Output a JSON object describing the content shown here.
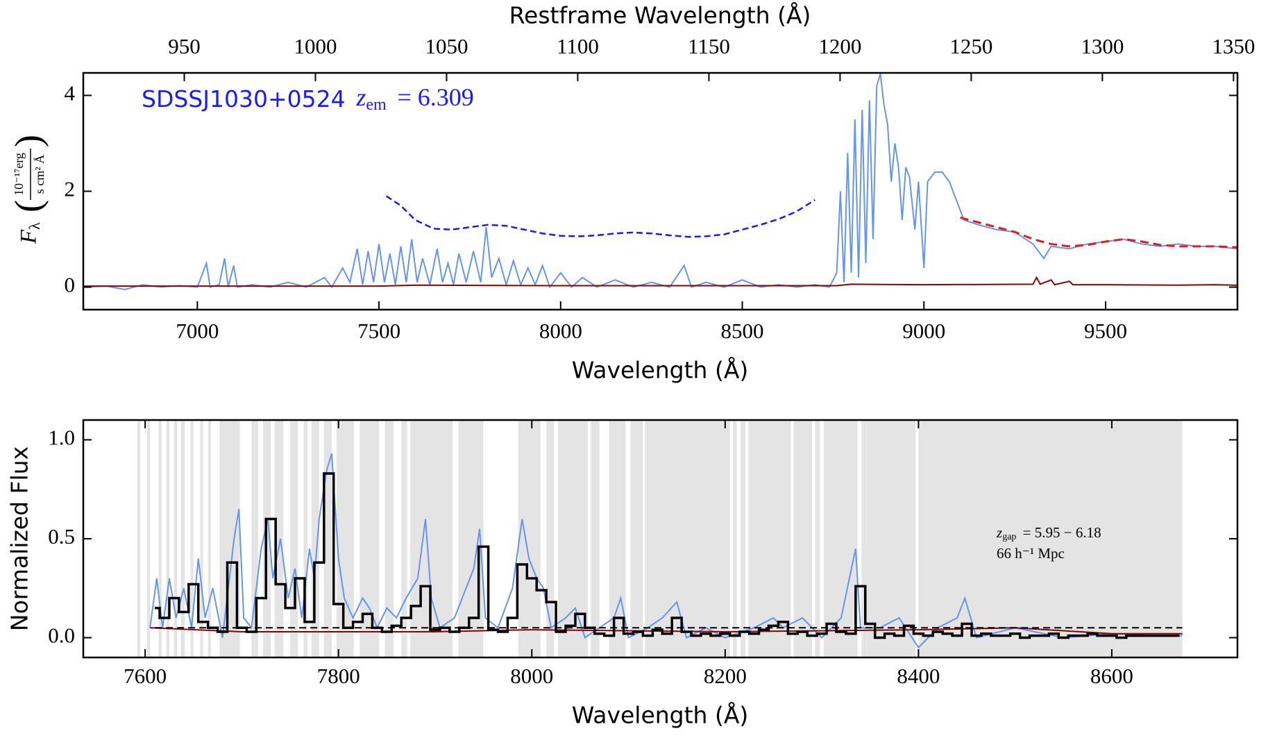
{
  "chart_data": [
    {
      "type": "line",
      "xlabel": "Wavelength (Å)",
      "x2label": "Restframe Wavelength (Å)",
      "ylabel_symbol": "F",
      "ylabel_sub": "λ",
      "ylabel_num": "10⁻¹⁷erg",
      "ylabel_den": "s cm² Å",
      "annotation_name": "SDSSJ1030+0524",
      "annotation_z": "z",
      "annotation_z_sub": "em",
      "annotation_z_value": "= 6.309",
      "annotation_color": "#1a1aff",
      "xlim": [
        6686,
        9863
      ],
      "xticks": [
        7000,
        7500,
        8000,
        8500,
        9000,
        9500
      ],
      "x2lim": [
        911.5,
        1351.5
      ],
      "x2ticks": [
        950,
        1000,
        1050,
        1100,
        1150,
        1200,
        1250,
        1300,
        1350
      ],
      "ylim": [
        -0.47,
        4.47
      ],
      "yticks": [
        0,
        2,
        4
      ],
      "series": [
        {
          "name": "flux",
          "color": "#6495ed",
          "dash": "none",
          "width": 2,
          "x": [
            6686,
            6750,
            6800,
            6850,
            6900,
            6950,
            7000,
            7025,
            7035,
            7060,
            7075,
            7085,
            7100,
            7110,
            7150,
            7200,
            7250,
            7300,
            7350,
            7370,
            7400,
            7420,
            7440,
            7455,
            7470,
            7485,
            7500,
            7515,
            7530,
            7545,
            7560,
            7575,
            7590,
            7605,
            7620,
            7640,
            7660,
            7675,
            7690,
            7705,
            7720,
            7740,
            7760,
            7780,
            7795,
            7810,
            7830,
            7850,
            7870,
            7890,
            7910,
            7930,
            7950,
            7970,
            8000,
            8030,
            8060,
            8100,
            8150,
            8200,
            8250,
            8300,
            8340,
            8360,
            8400,
            8450,
            8500,
            8550,
            8600,
            8650,
            8700,
            8740,
            8760,
            8770,
            8780,
            8790,
            8800,
            8810,
            8820,
            8830,
            8840,
            8850,
            8860,
            8870,
            8880,
            8890,
            8900,
            8910,
            8920,
            8930,
            8940,
            8950,
            8960,
            8975,
            8985,
            9000,
            9010,
            9030,
            9050,
            9070,
            9090,
            9110,
            9150,
            9200,
            9250,
            9300,
            9330,
            9350,
            9400,
            9450,
            9500,
            9550,
            9600,
            9650,
            9700,
            9750,
            9800,
            9863
          ],
          "values": [
            0,
            0.02,
            -0.05,
            0.05,
            0,
            0.03,
            0,
            0.5,
            0,
            0.05,
            0.6,
            0,
            0.45,
            0,
            0.05,
            0,
            0.1,
            0,
            0.2,
            0,
            0.4,
            0.1,
            0.8,
            0.05,
            0.75,
            0.1,
            0.9,
            0.1,
            0.7,
            0.05,
            0.85,
            0.1,
            1.0,
            0.1,
            0.6,
            0.05,
            0.8,
            0.1,
            0.5,
            0.05,
            0.7,
            0.1,
            0.75,
            0.1,
            1.25,
            0.2,
            0.6,
            0.05,
            0.55,
            0.05,
            0.4,
            0.05,
            0.45,
            0,
            0.3,
            0,
            0.2,
            0,
            0.15,
            0,
            0.1,
            0,
            0.45,
            0,
            0.1,
            0,
            0.15,
            0,
            0.05,
            0,
            0.05,
            0,
            0.3,
            2.0,
            0.1,
            2.8,
            0.3,
            3.5,
            0.2,
            3.7,
            0.5,
            3.9,
            1.0,
            4.2,
            4.45,
            3.8,
            3.4,
            2.2,
            3.0,
            2.5,
            1.4,
            2.5,
            2.3,
            1.2,
            2.2,
            0.4,
            2.2,
            2.4,
            2.4,
            2.2,
            1.8,
            1.4,
            1.3,
            1.2,
            1.15,
            0.9,
            0.6,
            0.85,
            0.8,
            0.9,
            0.95,
            1.0,
            0.9,
            0.85,
            0.9,
            0.85,
            0.85,
            0.8
          ]
        },
        {
          "name": "error",
          "color": "#8b0000",
          "dash": "none",
          "width": 2,
          "x": [
            6686,
            7000,
            7500,
            7600,
            8000,
            8500,
            8760,
            8800,
            9000,
            9300,
            9310,
            9320,
            9350,
            9360,
            9400,
            9410,
            9500,
            9700,
            9800,
            9863
          ],
          "values": [
            0.02,
            0.02,
            0.02,
            0.04,
            0.03,
            0.03,
            0.03,
            0.06,
            0.05,
            0.06,
            0.2,
            0.06,
            0.15,
            0.05,
            0.12,
            0.05,
            0.05,
            0.04,
            0.05,
            0.04
          ]
        },
        {
          "name": "continuum",
          "color": "#e41a1c",
          "dash": "12 7",
          "width": 3,
          "x": [
            9100,
            9150,
            9200,
            9250,
            9300,
            9350,
            9400,
            9450,
            9500,
            9550,
            9600,
            9650,
            9700,
            9750,
            9800,
            9863
          ],
          "values": [
            1.45,
            1.35,
            1.25,
            1.15,
            1.0,
            0.9,
            0.85,
            0.88,
            0.95,
            1.0,
            0.95,
            0.88,
            0.85,
            0.85,
            0.85,
            0.83
          ]
        },
        {
          "name": "model",
          "color": "#1a1aff",
          "dash": "9 5",
          "width": 2.5,
          "x": [
            7520,
            7560,
            7600,
            7650,
            7700,
            7750,
            7800,
            7850,
            7900,
            7950,
            8000,
            8050,
            8100,
            8150,
            8200,
            8250,
            8300,
            8350,
            8400,
            8450,
            8500,
            8550,
            8600,
            8650,
            8700
          ],
          "values": [
            1.9,
            1.7,
            1.4,
            1.22,
            1.2,
            1.25,
            1.3,
            1.28,
            1.2,
            1.12,
            1.07,
            1.06,
            1.08,
            1.12,
            1.14,
            1.12,
            1.08,
            1.05,
            1.06,
            1.1,
            1.2,
            1.3,
            1.42,
            1.58,
            1.82
          ]
        }
      ]
    },
    {
      "type": "line",
      "xlabel": "Wavelength (Å)",
      "ylabel": "Normalized Flux",
      "annotation_z": "z",
      "annotation_z_sub": "gap",
      "annotation_z_value": "= 5.95 − 6.18",
      "annotation_scale": "66 h⁻¹ Mpc",
      "xlim": [
        7536,
        8730
      ],
      "xticks": [
        7600,
        7800,
        8000,
        8200,
        8400,
        8600
      ],
      "ylim": [
        -0.1,
        1.1
      ],
      "yticks": [
        {
          "value": 0,
          "label": "0.0"
        },
        {
          "value": 0.5,
          "label": "0.5"
        },
        {
          "value": 1,
          "label": "1.0"
        }
      ],
      "shade_color": "#e4e4e4",
      "shaded_regions": [
        [
          7592,
          7595
        ],
        [
          7602,
          7605
        ],
        [
          7614,
          7617
        ],
        [
          7622,
          7625
        ],
        [
          7630,
          7633
        ],
        [
          7637,
          7641
        ],
        [
          7647,
          7650
        ],
        [
          7657,
          7660
        ],
        [
          7665,
          7668
        ],
        [
          7677,
          7698
        ],
        [
          7710,
          7717
        ],
        [
          7722,
          7730
        ],
        [
          7734,
          7743
        ],
        [
          7750,
          7758
        ],
        [
          7764,
          7768
        ],
        [
          7772,
          7780
        ],
        [
          7785,
          7793
        ],
        [
          7798,
          7816
        ],
        [
          7822,
          7842
        ],
        [
          7848,
          7857
        ],
        [
          7865,
          7871
        ],
        [
          7874,
          7918
        ],
        [
          7924,
          7950
        ],
        [
          7986,
          8009
        ],
        [
          8015,
          8023
        ],
        [
          8027,
          8058
        ],
        [
          8061,
          8070
        ],
        [
          8080,
          8097
        ],
        [
          8102,
          8115
        ],
        [
          8117,
          8205
        ],
        [
          8208,
          8212
        ],
        [
          8216,
          8221
        ],
        [
          8224,
          8268
        ],
        [
          8271,
          8290
        ],
        [
          8293,
          8298
        ],
        [
          8302,
          8337
        ],
        [
          8341,
          8397
        ],
        [
          8400,
          8673
        ]
      ],
      "series": [
        {
          "name": "flux",
          "color": "#6495ed",
          "dash": "none",
          "width": 2,
          "x": [
            7605,
            7612,
            7618,
            7625,
            7632,
            7640,
            7648,
            7655,
            7662,
            7670,
            7680,
            7692,
            7697,
            7702,
            7710,
            7720,
            7727,
            7732,
            7740,
            7748,
            7755,
            7762,
            7770,
            7775,
            7780,
            7788,
            7793,
            7800,
            7806,
            7815,
            7825,
            7832,
            7840,
            7850,
            7860,
            7870,
            7882,
            7890,
            7896,
            7905,
            7920,
            7940,
            7946,
            7952,
            7965,
            7980,
            7990,
            7997,
            8005,
            8012,
            8020,
            8035,
            8045,
            8055,
            8070,
            8085,
            8092,
            8100,
            8120,
            8135,
            8150,
            8160,
            8180,
            8200,
            8230,
            8250,
            8260,
            8280,
            8300,
            8320,
            8335,
            8340,
            8360,
            8380,
            8400,
            8420,
            8440,
            8448,
            8460,
            8500,
            8550,
            8600,
            8650,
            8673
          ],
          "values": [
            0.05,
            0.3,
            0.05,
            0.3,
            0.1,
            0.25,
            0.05,
            0.4,
            0.1,
            0.25,
            0,
            0.5,
            0.65,
            0.1,
            0.05,
            0.45,
            0.6,
            0.3,
            0.5,
            0.2,
            0.35,
            0.1,
            0.45,
            0.3,
            0.6,
            0.85,
            0.93,
            0.4,
            0.2,
            0.1,
            0.2,
            0.15,
            0.05,
            0.15,
            0.1,
            0.2,
            0.3,
            0.6,
            0.2,
            0.05,
            0.1,
            0.35,
            0.55,
            0.1,
            0.05,
            0.25,
            0.6,
            0.4,
            0.3,
            0.25,
            0.05,
            0.1,
            0.15,
            0,
            0.05,
            0.1,
            0.2,
            0,
            0.05,
            0.1,
            0.18,
            0,
            0.05,
            0,
            0.05,
            0.1,
            0.05,
            0.1,
            0,
            0.1,
            0.45,
            0.05,
            0.05,
            0.1,
            -0.05,
            0.05,
            0.1,
            0.2,
            0,
            0.05,
            0,
            0.02,
            0.01,
            0.01
          ]
        },
        {
          "name": "error",
          "color": "#8b0000",
          "dash": "none",
          "width": 2,
          "x": [
            7605,
            7700,
            7800,
            7900,
            8000,
            8200,
            8400,
            8500,
            8600,
            8673
          ],
          "values": [
            0.05,
            0.03,
            0.03,
            0.03,
            0.04,
            0.03,
            0.04,
            0.05,
            0.02,
            0.02
          ]
        },
        {
          "name": "threshold",
          "color": "#000000",
          "dash": "10 6",
          "width": 2,
          "x": [
            7610,
            8673
          ],
          "values": [
            0.05,
            0.05
          ]
        },
        {
          "name": "binned",
          "color": "#000000",
          "dash": "none",
          "width": 3.5,
          "drawstyle": "steps-mid",
          "x": [
            7610,
            7620,
            7630,
            7640,
            7650,
            7660,
            7670,
            7680,
            7690,
            7700,
            7710,
            7720,
            7730,
            7740,
            7750,
            7760,
            7770,
            7780,
            7790,
            7800,
            7810,
            7820,
            7830,
            7840,
            7850,
            7860,
            7870,
            7880,
            7890,
            7900,
            7910,
            7920,
            7930,
            7940,
            7950,
            7960,
            7970,
            7980,
            7990,
            8000,
            8010,
            8020,
            8030,
            8040,
            8050,
            8060,
            8070,
            8080,
            8090,
            8100,
            8110,
            8120,
            8130,
            8140,
            8150,
            8160,
            8170,
            8180,
            8190,
            8200,
            8210,
            8220,
            8230,
            8240,
            8250,
            8260,
            8270,
            8280,
            8290,
            8300,
            8310,
            8320,
            8330,
            8340,
            8350,
            8360,
            8370,
            8380,
            8390,
            8400,
            8410,
            8420,
            8430,
            8440,
            8450,
            8460,
            8470,
            8480,
            8490,
            8500,
            8510,
            8520,
            8530,
            8540,
            8550,
            8560,
            8570,
            8580,
            8590,
            8600,
            8610,
            8620,
            8630,
            8640,
            8650,
            8660,
            8670
          ],
          "values": [
            0.15,
            0.1,
            0.2,
            0.13,
            0.27,
            0.08,
            0.05,
            0.03,
            0.38,
            0.05,
            0.03,
            0.2,
            0.6,
            0.27,
            0.15,
            0.3,
            0.08,
            0.38,
            0.83,
            0.17,
            0.05,
            0.08,
            0.12,
            0.05,
            0.03,
            0.06,
            0.1,
            0.16,
            0.26,
            0.04,
            0.05,
            0.03,
            0.05,
            0.1,
            0.46,
            0.04,
            0.03,
            0.1,
            0.37,
            0.3,
            0.24,
            0.18,
            0.03,
            0.06,
            0.12,
            0.05,
            0.02,
            0.01,
            0.1,
            0.02,
            0.03,
            0.01,
            0.04,
            0.02,
            0.1,
            0.03,
            0.01,
            0.02,
            0.01,
            0.02,
            0.01,
            0.03,
            0.02,
            0.04,
            0.06,
            0.08,
            0.02,
            0.03,
            0.01,
            0.02,
            0.07,
            0.03,
            0.02,
            0.26,
            0.07,
            0,
            0.02,
            0.01,
            0.06,
            0.02,
            0.01,
            0.03,
            0.02,
            0.01,
            0.07,
            0.01,
            0.02,
            0.01,
            0.01,
            0.02,
            0,
            0.01,
            0.01,
            0.02,
            0,
            0.01,
            0.01,
            0.02,
            0.01,
            0.01,
            0,
            0.01,
            0.01,
            0.01,
            0.01,
            0.01,
            0.01
          ]
        }
      ]
    }
  ]
}
